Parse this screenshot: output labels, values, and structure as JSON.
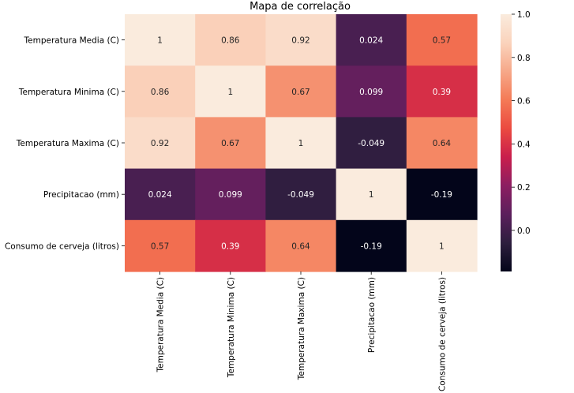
{
  "chart_data": {
    "type": "heatmap",
    "title": "Mapa de correlação",
    "labels": [
      "Temperatura Media (C)",
      "Temperatura Minima (C)",
      "Temperatura Maxima (C)",
      "Precipitacao (mm)",
      "Consumo de cerveja (litros)"
    ],
    "matrix": [
      [
        1,
        0.86,
        0.92,
        0.024,
        0.57
      ],
      [
        0.86,
        1,
        0.67,
        0.099,
        0.39
      ],
      [
        0.92,
        0.67,
        1,
        -0.049,
        0.64
      ],
      [
        0.024,
        0.099,
        -0.049,
        1,
        -0.19
      ],
      [
        0.57,
        0.39,
        0.64,
        -0.19,
        1
      ]
    ],
    "annotations": [
      [
        "1",
        "0.86",
        "0.92",
        "0.024",
        "0.57"
      ],
      [
        "0.86",
        "1",
        "0.67",
        "0.099",
        "0.39"
      ],
      [
        "0.92",
        "0.67",
        "1",
        "-0.049",
        "0.64"
      ],
      [
        "0.024",
        "0.099",
        "-0.049",
        "1",
        "-0.19"
      ],
      [
        "0.57",
        "0.39",
        "0.64",
        "-0.19",
        "1"
      ]
    ],
    "colorbar": {
      "range": [
        -0.19,
        1.0
      ],
      "ticks": [
        0.0,
        0.2,
        0.4,
        0.6,
        0.8,
        1.0
      ],
      "tick_labels": [
        "0.0",
        "0.2",
        "0.4",
        "0.6",
        "0.8",
        "1.0"
      ]
    },
    "colormap_stops": [
      "#03051a",
      "#2d1e3e",
      "#5b1f5c",
      "#8c1e61",
      "#c91e4c",
      "#eb4a40",
      "#f47a56",
      "#f6a889",
      "#fad3bc",
      "#faebdd"
    ]
  }
}
